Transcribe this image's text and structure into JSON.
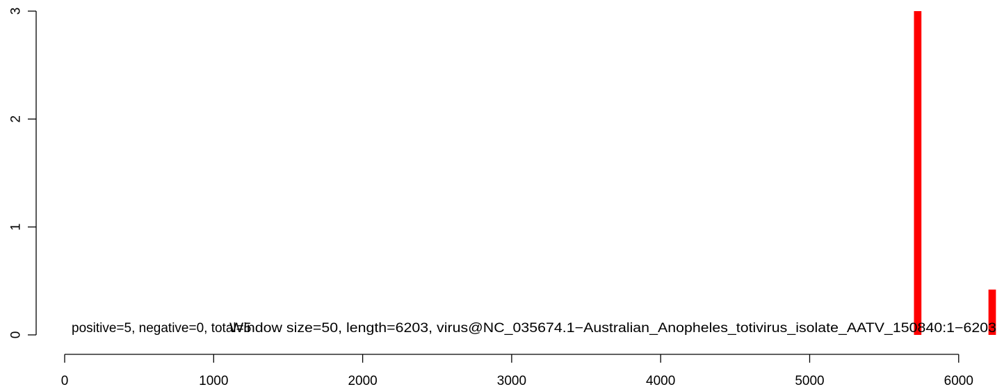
{
  "chart_data": {
    "type": "bar",
    "title": "",
    "xlabel": "",
    "ylabel": "",
    "xlim": [
      0,
      6203
    ],
    "ylim": [
      0,
      3
    ],
    "x_ticks": [
      0,
      1000,
      2000,
      3000,
      4000,
      5000,
      6000
    ],
    "y_ticks": [
      0,
      1,
      2,
      3
    ],
    "window_size": 50,
    "bar_color": "#ff0000",
    "bars": [
      {
        "start": 5700,
        "end": 5750,
        "value": 3
      },
      {
        "start": 6200,
        "end": 6250,
        "value": 0.42
      }
    ],
    "annotations": {
      "counts": "positive=5, negative=0, total=5",
      "info": "Window size=50, length=6203, virus@NC_035674.1−Australian_Anopheles_totivirus_isolate_AATV_150840:1−6203"
    }
  }
}
